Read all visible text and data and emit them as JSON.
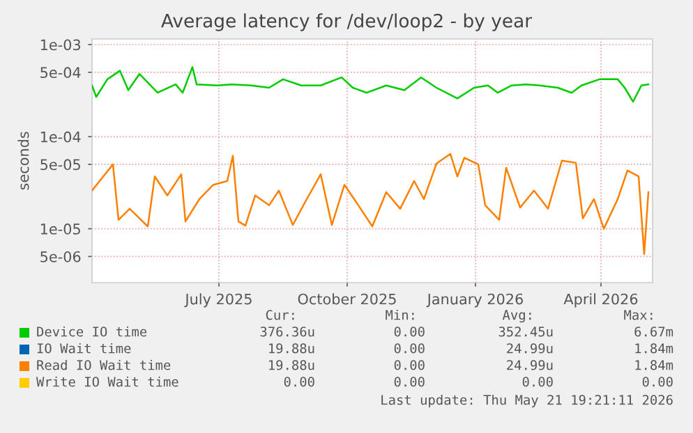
{
  "chart_data": {
    "type": "line",
    "title": "Average latency for /dev/loop2 - by year",
    "ylabel": "seconds",
    "log": "y",
    "grid": true,
    "legend": "bottom",
    "xlim": [
      "2025-04-01",
      "2026-05-08"
    ],
    "xticks": [
      {
        "value": "2025-07-01",
        "label": "July 2025"
      },
      {
        "value": "2025-10-01",
        "label": "October 2025"
      },
      {
        "value": "2026-01-01",
        "label": "January 2026"
      },
      {
        "value": "2026-04-01",
        "label": "April 2026"
      }
    ],
    "ylim": [
      2.6e-06,
      0.00115
    ],
    "yticks": [
      {
        "value": 0.001,
        "label": "1e-03"
      },
      {
        "value": 0.0005,
        "label": "5e-04"
      },
      {
        "value": 0.0001,
        "label": "1e-04"
      },
      {
        "value": 5e-05,
        "label": "5e-05"
      },
      {
        "value": 1e-05,
        "label": "1e-05"
      },
      {
        "value": 5e-06,
        "label": "5e-06"
      }
    ],
    "series": [
      {
        "name": "Device IO time",
        "color": "#00cc00",
        "x": [
          "2025-04-01",
          "2025-04-04",
          "2025-04-12",
          "2025-04-21",
          "2025-04-27",
          "2025-05-05",
          "2025-05-18",
          "2025-05-31",
          "2025-06-05",
          "2025-06-12",
          "2025-06-15",
          "2025-06-30",
          "2025-07-10",
          "2025-07-24",
          "2025-08-06",
          "2025-08-16",
          "2025-08-29",
          "2025-09-12",
          "2025-09-27",
          "2025-10-05",
          "2025-10-15",
          "2025-10-29",
          "2025-11-11",
          "2025-11-23",
          "2025-12-04",
          "2025-12-19",
          "2025-12-31",
          "2026-01-10",
          "2026-01-17",
          "2026-01-27",
          "2026-02-06",
          "2026-02-16",
          "2026-03-01",
          "2026-03-11",
          "2026-03-18",
          "2026-03-31",
          "2026-04-13",
          "2026-04-18",
          "2026-04-24",
          "2026-04-30",
          "2026-05-05"
        ],
        "values": [
          0.00036,
          0.00027,
          0.00042,
          0.00052,
          0.00032,
          0.00048,
          0.0003,
          0.00037,
          0.0003,
          0.00057,
          0.00037,
          0.00036,
          0.00037,
          0.00036,
          0.00034,
          0.00042,
          0.00036,
          0.00036,
          0.00044,
          0.00034,
          0.0003,
          0.00036,
          0.00032,
          0.00044,
          0.00034,
          0.00026,
          0.00034,
          0.00036,
          0.0003,
          0.00036,
          0.00037,
          0.00036,
          0.00034,
          0.0003,
          0.00036,
          0.00042,
          0.00042,
          0.00034,
          0.00024,
          0.00036,
          0.00037
        ]
      },
      {
        "name": "IO Wait time",
        "color": "#0066b3"
      },
      {
        "name": "Read IO Wait time",
        "color": "#ff8000",
        "x": [
          "2025-04-01",
          "2025-04-16",
          "2025-04-20",
          "2025-04-28",
          "2025-05-05",
          "2025-05-11",
          "2025-05-16",
          "2025-05-25",
          "2025-06-04",
          "2025-06-07",
          "2025-06-17",
          "2025-06-27",
          "2025-07-07",
          "2025-07-11",
          "2025-07-15",
          "2025-07-20",
          "2025-07-27",
          "2025-08-06",
          "2025-08-13",
          "2025-08-23",
          "2025-09-02",
          "2025-09-12",
          "2025-09-20",
          "2025-09-29",
          "2025-10-09",
          "2025-10-19",
          "2025-10-29",
          "2025-11-08",
          "2025-11-18",
          "2025-11-25",
          "2025-12-04",
          "2025-12-14",
          "2025-12-19",
          "2025-12-24",
          "2026-01-03",
          "2026-01-08",
          "2026-01-18",
          "2026-01-23",
          "2026-02-02",
          "2026-02-12",
          "2026-02-22",
          "2026-03-04",
          "2026-03-14",
          "2026-03-19",
          "2026-03-27",
          "2026-04-03",
          "2026-04-13",
          "2026-04-20",
          "2026-04-28",
          "2026-05-02",
          "2026-05-05"
        ],
        "values": [
          2.6e-05,
          5e-05,
          1.25e-05,
          1.65e-05,
          1.3e-05,
          1.06e-05,
          3.7e-05,
          2.3e-05,
          3.9e-05,
          1.2e-05,
          2.1e-05,
          3e-05,
          3.3e-05,
          6.2e-05,
          1.2e-05,
          1.08e-05,
          2.3e-05,
          1.8e-05,
          2.6e-05,
          1.1e-05,
          2.1e-05,
          3.9e-05,
          1.1e-05,
          3e-05,
          1.8e-05,
          1.06e-05,
          2.5e-05,
          1.65e-05,
          3.3e-05,
          2.1e-05,
          5.1e-05,
          6.5e-05,
          3.7e-05,
          5.9e-05,
          5e-05,
          1.8e-05,
          1.25e-05,
          4.6e-05,
          1.7e-05,
          2.6e-05,
          1.65e-05,
          5.5e-05,
          5.2e-05,
          1.3e-05,
          2.1e-05,
          1e-05,
          2.1e-05,
          4.3e-05,
          3.7e-05,
          5.3e-06,
          2.5e-05
        ]
      },
      {
        "name": "Write IO Wait time",
        "color": "#ffcc00"
      }
    ],
    "annotations": [
      "Cur:",
      "Min:",
      "Avg:",
      "Max:",
      "376.36u",
      "0.00",
      "352.45u",
      "6.67m",
      "19.88u",
      "0.00",
      "24.99u",
      "1.84m",
      "19.88u",
      "0.00",
      "24.99u",
      "1.84m",
      "0.00",
      "0.00",
      "0.00",
      "0.00",
      "Last update: Thu May 21 19:21:11 2026"
    ]
  }
}
